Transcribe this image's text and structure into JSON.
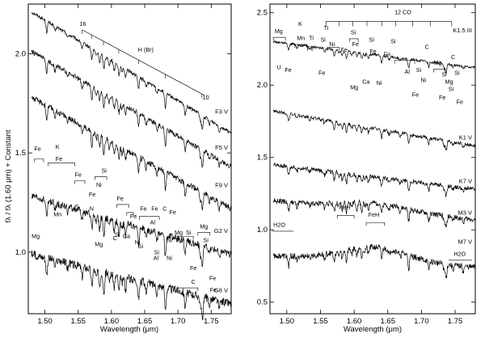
{
  "figure": {
    "y_label": "fλ / fλ (1.60 μm) + Constant",
    "x_label": "Wavelength (μm)"
  },
  "chart_data": [
    {
      "type": "line",
      "panel": "left",
      "xlabel": "Wavelength (μm)",
      "ylabel": "fλ / fλ (1.60 μm) + Constant",
      "xlim": [
        1.475,
        1.78
      ],
      "ylim": [
        0.69,
        2.25
      ],
      "xticks": [
        1.5,
        1.55,
        1.6,
        1.65,
        1.7,
        1.75
      ],
      "yticks": [
        1.0,
        1.5,
        2.0
      ],
      "xtick_labels": [
        "1.50",
        "1.55",
        "1.60",
        "1.65",
        "1.70",
        "1.75"
      ],
      "ytick_labels": [
        "1.0",
        "1.5",
        "2.0"
      ],
      "series": [
        {
          "name": "F3 V",
          "x": [
            1.48,
            1.78
          ],
          "y": [
            2.21,
            1.6
          ],
          "label_y": 1.71
        },
        {
          "name": "F5 V",
          "x": [
            1.48,
            1.78
          ],
          "y": [
            2.01,
            1.43
          ],
          "label_y": 1.53
        },
        {
          "name": "F9 V",
          "x": [
            1.48,
            1.78
          ],
          "y": [
            1.78,
            1.22
          ],
          "label_y": 1.34
        },
        {
          "name": "G2 V",
          "x": [
            1.48,
            1.78
          ],
          "y": [
            1.28,
            0.99
          ],
          "label_y": 1.11
        },
        {
          "name": "G8 V",
          "x": [
            1.48,
            1.78
          ],
          "y": [
            0.99,
            0.74
          ],
          "label_y": 0.81
        }
      ],
      "annotations": [
        {
          "text": "16",
          "x": 1.552,
          "y": 2.14
        },
        {
          "text": "H (Br)",
          "x": 1.64,
          "y": 2.01
        },
        {
          "text": "10",
          "x": 1.737,
          "y": 1.77
        },
        {
          "text": "Fe",
          "x": 1.484,
          "y": 1.51
        },
        {
          "text": "K",
          "x": 1.516,
          "y": 1.52
        },
        {
          "text": "Fe",
          "x": 1.516,
          "y": 1.46
        },
        {
          "text": "Fe",
          "x": 1.545,
          "y": 1.38
        },
        {
          "text": "Si",
          "x": 1.585,
          "y": 1.4
        },
        {
          "text": "Ni",
          "x": 1.577,
          "y": 1.33
        },
        {
          "text": "Fe",
          "x": 1.566,
          "y": 1.28
        },
        {
          "text": "Fe",
          "x": 1.608,
          "y": 1.26
        },
        {
          "text": "S",
          "x": 1.545,
          "y": 1.22
        },
        {
          "text": "N",
          "x": 1.567,
          "y": 1.21
        },
        {
          "text": "Fe",
          "x": 1.643,
          "y": 1.21
        },
        {
          "text": "Fe",
          "x": 1.66,
          "y": 1.21
        },
        {
          "text": "C",
          "x": 1.677,
          "y": 1.21
        },
        {
          "text": "Fe",
          "x": 1.687,
          "y": 1.19
        },
        {
          "text": "Mn",
          "x": 1.513,
          "y": 1.18
        },
        {
          "text": "Mg",
          "x": 1.48,
          "y": 1.07
        },
        {
          "text": "Fe",
          "x": 1.628,
          "y": 1.17
        },
        {
          "text": "Al",
          "x": 1.658,
          "y": 1.14
        },
        {
          "text": "C",
          "x": 1.602,
          "y": 1.06
        },
        {
          "text": "Si",
          "x": 1.605,
          "y": 1.08
        },
        {
          "text": "Ca",
          "x": 1.617,
          "y": 1.07
        },
        {
          "text": "Mg",
          "x": 1.575,
          "y": 1.03
        },
        {
          "text": "Ni",
          "x": 1.635,
          "y": 1.04
        },
        {
          "text": "Ni",
          "x": 1.683,
          "y": 1.05
        },
        {
          "text": "Mg",
          "x": 1.695,
          "y": 1.09
        },
        {
          "text": "Si",
          "x": 1.712,
          "y": 1.09
        },
        {
          "text": "Mg",
          "x": 1.733,
          "y": 1.12
        },
        {
          "text": "Si",
          "x": 1.738,
          "y": 1.05
        },
        {
          "text": "Si",
          "x": 1.64,
          "y": 1.02
        },
        {
          "text": "Si",
          "x": 1.664,
          "y": 0.99
        },
        {
          "text": "Al",
          "x": 1.663,
          "y": 0.96
        },
        {
          "text": "Ni",
          "x": 1.683,
          "y": 0.96
        },
        {
          "text": "Fe",
          "x": 1.718,
          "y": 0.91
        },
        {
          "text": "Fe",
          "x": 1.747,
          "y": 0.86
        },
        {
          "text": "C",
          "x": 1.72,
          "y": 0.84
        },
        {
          "text": "Fe",
          "x": 1.748,
          "y": 0.8
        }
      ]
    },
    {
      "type": "line",
      "panel": "right",
      "xlabel": "Wavelength (μm)",
      "xlim": [
        1.475,
        1.78
      ],
      "ylim": [
        0.42,
        2.56
      ],
      "xticks": [
        1.5,
        1.55,
        1.6,
        1.65,
        1.7,
        1.75
      ],
      "yticks": [
        0.5,
        1.0,
        1.5,
        2.0,
        2.5
      ],
      "xtick_labels": [
        "1.50",
        "1.55",
        "1.60",
        "1.65",
        "1.70",
        "1.75"
      ],
      "ytick_labels": [
        "0.5",
        "1.0",
        "1.5",
        "2.0",
        "2.5"
      ],
      "series": [
        {
          "name": "K1.5 III",
          "x": [
            1.48,
            1.78
          ],
          "y": [
            2.3,
            2.12
          ],
          "label_y": 2.38
        },
        {
          "name": "K1 V",
          "x": [
            1.48,
            1.78
          ],
          "y": [
            1.82,
            1.58
          ],
          "label_y": 1.64
        },
        {
          "name": "K7 V",
          "x": [
            1.48,
            1.78
          ],
          "y": [
            1.45,
            1.28
          ],
          "label_y": 1.34
        },
        {
          "name": "M3 V",
          "x": [
            1.48,
            1.78
          ],
          "y": [
            1.2,
            1.07
          ],
          "label_y": 1.12
        },
        {
          "name": "M7 V",
          "x": [
            1.48,
            1.78
          ],
          "y": [
            0.82,
            0.74
          ],
          "label_y": 0.92
        }
      ],
      "annotations": [
        {
          "text": "12 CO",
          "x": 1.66,
          "y": 2.49
        },
        {
          "text": "K",
          "x": 1.517,
          "y": 2.41
        },
        {
          "text": "Mg",
          "x": 1.482,
          "y": 2.36
        },
        {
          "text": "Mn",
          "x": 1.515,
          "y": 2.31
        },
        {
          "text": "Ti",
          "x": 1.555,
          "y": 2.38
        },
        {
          "text": "Ti",
          "x": 1.533,
          "y": 2.31
        },
        {
          "text": "Si",
          "x": 1.55,
          "y": 2.3
        },
        {
          "text": "Si",
          "x": 1.595,
          "y": 2.35
        },
        {
          "text": "Fe",
          "x": 1.53,
          "y": 2.24
        },
        {
          "text": "Ni",
          "x": 1.563,
          "y": 2.27
        },
        {
          "text": "Fe",
          "x": 1.597,
          "y": 2.27
        },
        {
          "text": "Si",
          "x": 1.622,
          "y": 2.3
        },
        {
          "text": "Si",
          "x": 1.654,
          "y": 2.29
        },
        {
          "text": "Fe",
          "x": 1.58,
          "y": 2.23
        },
        {
          "text": "Fe",
          "x": 1.623,
          "y": 2.22
        },
        {
          "text": "Fe",
          "x": 1.644,
          "y": 2.2
        },
        {
          "text": "C",
          "x": 1.705,
          "y": 2.25
        },
        {
          "text": "U",
          "x": 1.485,
          "y": 2.11
        },
        {
          "text": "Fe",
          "x": 1.497,
          "y": 2.09
        },
        {
          "text": "Fe",
          "x": 1.547,
          "y": 2.07
        },
        {
          "text": "Al",
          "x": 1.675,
          "y": 2.08
        },
        {
          "text": "Si",
          "x": 1.692,
          "y": 2.09
        },
        {
          "text": "Mg",
          "x": 1.718,
          "y": 2.14
        },
        {
          "text": "C",
          "x": 1.744,
          "y": 2.18
        },
        {
          "text": "Mg",
          "x": 1.594,
          "y": 1.97
        },
        {
          "text": "Ca",
          "x": 1.612,
          "y": 2.01
        },
        {
          "text": "Ni",
          "x": 1.633,
          "y": 2.0
        },
        {
          "text": "Ni",
          "x": 1.699,
          "y": 2.02
        },
        {
          "text": "Si",
          "x": 1.73,
          "y": 2.06
        },
        {
          "text": "Mg",
          "x": 1.735,
          "y": 2.01
        },
        {
          "text": "Si",
          "x": 1.749,
          "y": 2.07
        },
        {
          "text": "Si",
          "x": 1.74,
          "y": 1.96
        },
        {
          "text": "Fe",
          "x": 1.726,
          "y": 1.9
        },
        {
          "text": "Fe",
          "x": 1.752,
          "y": 1.87
        },
        {
          "text": "Fe",
          "x": 1.686,
          "y": 1.92
        },
        {
          "text": "H2O",
          "x": 1.48,
          "y": 1.02
        },
        {
          "text": "FeH",
          "x": 1.578,
          "y": 1.14
        },
        {
          "text": "FeH",
          "x": 1.621,
          "y": 1.09
        },
        {
          "text": "H2O",
          "x": 1.748,
          "y": 0.82
        }
      ]
    }
  ]
}
